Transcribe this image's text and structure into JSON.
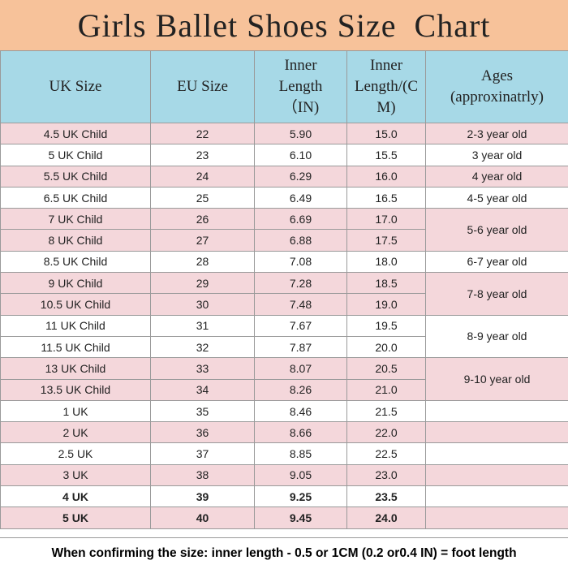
{
  "title": "Girls Ballet Shoes Size  Chart",
  "colors": {
    "header_bg": "#a7d9e7",
    "title_bg": "#f7c29a",
    "row_pink": "#f4d7db",
    "row_white": "#ffffff"
  },
  "headers": {
    "uk": "UK Size",
    "eu": "EU Size",
    "inner_in": [
      "Inner",
      "Length",
      "（IN)"
    ],
    "inner_cm": [
      "Inner",
      "Length/(C",
      "M)"
    ],
    "ages": [
      "Ages",
      "(approxinatrly)"
    ]
  },
  "rows": [
    {
      "uk": "4.5 UK Child",
      "eu": "22",
      "in": "5.90",
      "cm": "15.0"
    },
    {
      "uk": "5 UK Child",
      "eu": "23",
      "in": "6.10",
      "cm": "15.5"
    },
    {
      "uk": "5.5  UK Child",
      "eu": "24",
      "in": "6.29",
      "cm": "16.0"
    },
    {
      "uk": "6.5  UK Child",
      "eu": "25",
      "in": "6.49",
      "cm": "16.5"
    },
    {
      "uk": "7  UK Child",
      "eu": "26",
      "in": "6.69",
      "cm": "17.0"
    },
    {
      "uk": "8  UK Child",
      "eu": "27",
      "in": "6.88",
      "cm": "17.5"
    },
    {
      "uk": "8.5  UK Child",
      "eu": "28",
      "in": "7.08",
      "cm": "18.0"
    },
    {
      "uk": "9  UK Child",
      "eu": "29",
      "in": "7.28",
      "cm": "18.5"
    },
    {
      "uk": "10.5  UK Child",
      "eu": "30",
      "in": "7.48",
      "cm": "19.0"
    },
    {
      "uk": "11 UK Child",
      "eu": "31",
      "in": "7.67",
      "cm": "19.5"
    },
    {
      "uk": "11.5  UK Child",
      "eu": "32",
      "in": "7.87",
      "cm": "20.0"
    },
    {
      "uk": "13 UK Child",
      "eu": "33",
      "in": "8.07",
      "cm": "20.5"
    },
    {
      "uk": "13.5  UK Child",
      "eu": "34",
      "in": "8.26",
      "cm": "21.0"
    },
    {
      "uk": "1  UK",
      "eu": "35",
      "in": "8.46",
      "cm": "21.5"
    },
    {
      "uk": "2 UK",
      "eu": "36",
      "in": "8.66",
      "cm": "22.0"
    },
    {
      "uk": "2.5 UK",
      "eu": "37",
      "in": "8.85",
      "cm": "22.5"
    },
    {
      "uk": "3  UK",
      "eu": "38",
      "in": "9.05",
      "cm": "23.0"
    },
    {
      "uk": "4  UK",
      "eu": "39",
      "in": "9.25",
      "cm": "23.5"
    },
    {
      "uk": "5  UK",
      "eu": "40",
      "in": "9.45",
      "cm": "24.0"
    }
  ],
  "ages": {
    "a0": "2-3 year old",
    "a1": "3    year old",
    "a2": "4    year old",
    "a3": "4-5 year old",
    "a4": "5-6 year old",
    "a6": "6-7 year old",
    "a7": "7-8 year old",
    "a9": "8-9 year old",
    "a11": "9-10 year old"
  },
  "footer": "When confirming the size: inner length - 0.5 or 1CM (0.2 or0.4 IN) = foot length"
}
